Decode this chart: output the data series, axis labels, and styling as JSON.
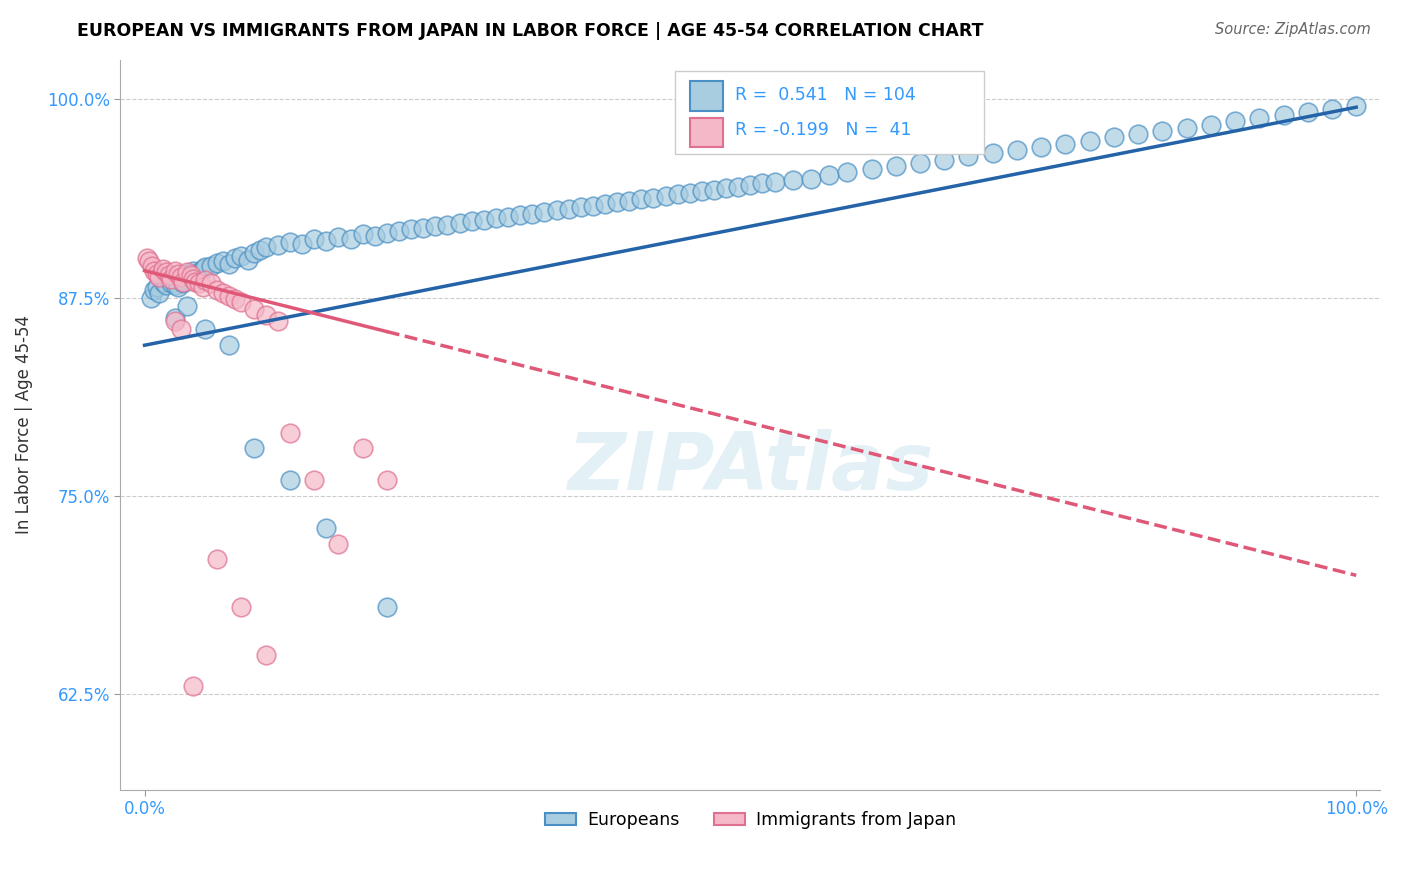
{
  "title": "EUROPEAN VS IMMIGRANTS FROM JAPAN IN LABOR FORCE | AGE 45-54 CORRELATION CHART",
  "source": "Source: ZipAtlas.com",
  "ylabel": "In Labor Force | Age 45-54",
  "xlim": [
    -0.02,
    1.02
  ],
  "ylim": [
    0.565,
    1.025
  ],
  "yticks": [
    0.625,
    0.75,
    0.875,
    1.0
  ],
  "ytick_labels": [
    "62.5%",
    "75.0%",
    "87.5%",
    "100.0%"
  ],
  "xtick_labels": [
    "0.0%",
    "100.0%"
  ],
  "blue_R": 0.541,
  "blue_N": 104,
  "pink_R": -0.199,
  "pink_N": 41,
  "blue_color": "#a8cce0",
  "blue_edge_color": "#4a90c4",
  "pink_color": "#f5b8c8",
  "pink_edge_color": "#e07090",
  "blue_line_color": "#2563a8",
  "pink_line_color": "#e05878",
  "watermark": "ZIPAtlas",
  "legend_Europeans": "Europeans",
  "legend_Japan": "Immigrants from Japan",
  "blue_x": [
    0.005,
    0.008,
    0.01,
    0.012,
    0.015,
    0.018,
    0.02,
    0.022,
    0.025,
    0.028,
    0.03,
    0.032,
    0.035,
    0.038,
    0.04,
    0.042,
    0.045,
    0.048,
    0.05,
    0.055,
    0.06,
    0.065,
    0.07,
    0.075,
    0.08,
    0.085,
    0.09,
    0.095,
    0.1,
    0.11,
    0.12,
    0.13,
    0.14,
    0.15,
    0.16,
    0.17,
    0.18,
    0.19,
    0.2,
    0.21,
    0.22,
    0.23,
    0.24,
    0.25,
    0.26,
    0.27,
    0.28,
    0.29,
    0.3,
    0.31,
    0.32,
    0.33,
    0.34,
    0.35,
    0.36,
    0.37,
    0.38,
    0.39,
    0.4,
    0.41,
    0.42,
    0.43,
    0.44,
    0.45,
    0.46,
    0.47,
    0.48,
    0.49,
    0.5,
    0.51,
    0.52,
    0.535,
    0.55,
    0.565,
    0.58,
    0.6,
    0.62,
    0.64,
    0.66,
    0.68,
    0.7,
    0.72,
    0.74,
    0.76,
    0.78,
    0.8,
    0.82,
    0.84,
    0.86,
    0.88,
    0.9,
    0.92,
    0.94,
    0.96,
    0.98,
    1.0,
    0.025,
    0.035,
    0.05,
    0.07,
    0.09,
    0.12,
    0.15,
    0.2
  ],
  "blue_y": [
    0.875,
    0.88,
    0.882,
    0.878,
    0.885,
    0.883,
    0.887,
    0.884,
    0.883,
    0.882,
    0.886,
    0.884,
    0.89,
    0.888,
    0.892,
    0.889,
    0.891,
    0.893,
    0.894,
    0.895,
    0.897,
    0.898,
    0.896,
    0.9,
    0.901,
    0.899,
    0.903,
    0.905,
    0.907,
    0.908,
    0.91,
    0.909,
    0.912,
    0.911,
    0.913,
    0.912,
    0.915,
    0.914,
    0.916,
    0.917,
    0.918,
    0.919,
    0.92,
    0.921,
    0.922,
    0.923,
    0.924,
    0.925,
    0.926,
    0.927,
    0.928,
    0.929,
    0.93,
    0.931,
    0.932,
    0.933,
    0.934,
    0.935,
    0.936,
    0.937,
    0.938,
    0.939,
    0.94,
    0.941,
    0.942,
    0.943,
    0.944,
    0.945,
    0.946,
    0.947,
    0.948,
    0.949,
    0.95,
    0.952,
    0.954,
    0.956,
    0.958,
    0.96,
    0.962,
    0.964,
    0.966,
    0.968,
    0.97,
    0.972,
    0.974,
    0.976,
    0.978,
    0.98,
    0.982,
    0.984,
    0.986,
    0.988,
    0.99,
    0.992,
    0.994,
    0.996,
    0.862,
    0.87,
    0.855,
    0.845,
    0.78,
    0.76,
    0.73,
    0.68
  ],
  "pink_x": [
    0.002,
    0.004,
    0.006,
    0.008,
    0.01,
    0.012,
    0.015,
    0.018,
    0.02,
    0.022,
    0.025,
    0.028,
    0.03,
    0.032,
    0.035,
    0.038,
    0.04,
    0.042,
    0.045,
    0.048,
    0.05,
    0.055,
    0.06,
    0.065,
    0.07,
    0.075,
    0.08,
    0.09,
    0.1,
    0.11,
    0.12,
    0.14,
    0.16,
    0.18,
    0.2,
    0.025,
    0.03,
    0.04,
    0.06,
    0.08,
    0.1
  ],
  "pink_y": [
    0.9,
    0.898,
    0.895,
    0.892,
    0.89,
    0.888,
    0.893,
    0.891,
    0.889,
    0.887,
    0.892,
    0.89,
    0.888,
    0.885,
    0.891,
    0.889,
    0.887,
    0.885,
    0.884,
    0.882,
    0.886,
    0.884,
    0.88,
    0.878,
    0.876,
    0.874,
    0.872,
    0.868,
    0.864,
    0.86,
    0.79,
    0.76,
    0.72,
    0.78,
    0.76,
    0.86,
    0.855,
    0.63,
    0.71,
    0.68,
    0.65
  ],
  "blue_line_x0": 0.0,
  "blue_line_x1": 1.0,
  "blue_line_y0": 0.845,
  "blue_line_y1": 0.995,
  "pink_line_x0": 0.0,
  "pink_line_x1": 1.0,
  "pink_line_y0": 0.892,
  "pink_line_y1": 0.7
}
